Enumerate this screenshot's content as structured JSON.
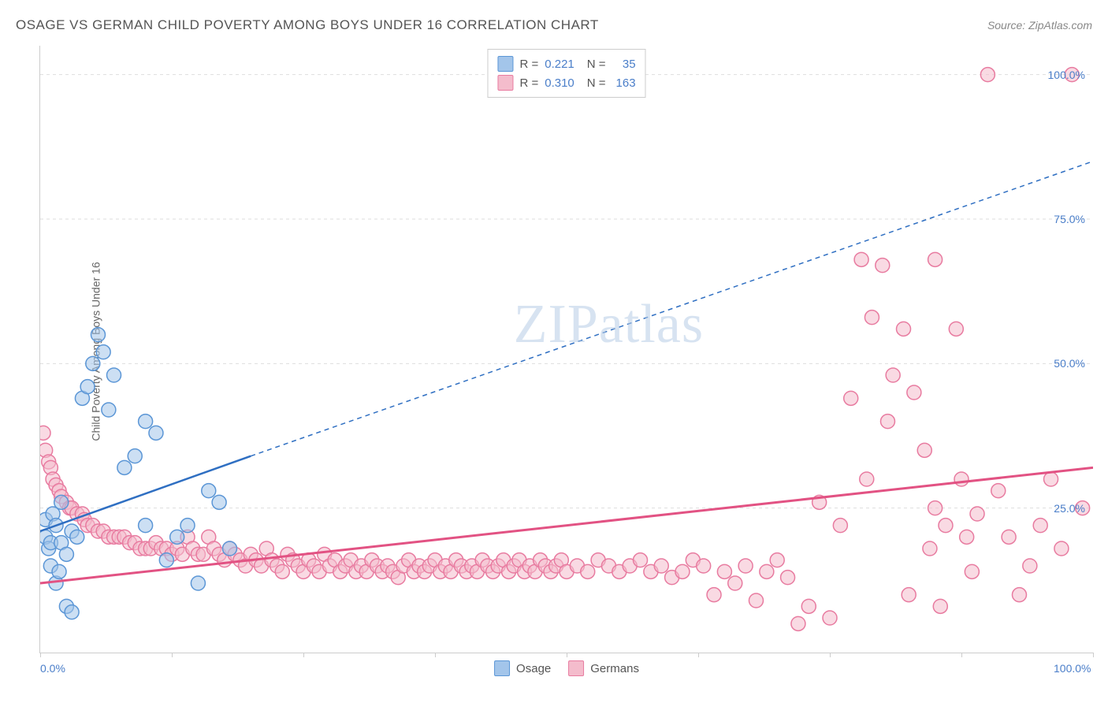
{
  "title": "OSAGE VS GERMAN CHILD POVERTY AMONG BOYS UNDER 16 CORRELATION CHART",
  "source": "Source: ZipAtlas.com",
  "y_axis_label": "Child Poverty Among Boys Under 16",
  "watermark": "ZIPatlas",
  "chart": {
    "type": "scatter",
    "background_color": "#ffffff",
    "grid_color": "#dddddd",
    "axis_color": "#cccccc",
    "tick_label_color": "#4a7ec9",
    "xlim": [
      0,
      100
    ],
    "ylim": [
      0,
      105
    ],
    "y_ticks": [
      25,
      50,
      75,
      100
    ],
    "y_tick_labels": [
      "25.0%",
      "50.0%",
      "75.0%",
      "100.0%"
    ],
    "x_ticks": [
      0,
      12.5,
      25,
      37.5,
      50,
      62.5,
      75,
      87.5,
      100
    ],
    "x_tick_labels_shown": {
      "0": "0.0%",
      "100": "100.0%"
    },
    "marker_radius": 9,
    "marker_opacity": 0.55,
    "series": [
      {
        "name": "Osage",
        "color_fill": "#a3c5ea",
        "color_stroke": "#5b96d6",
        "r": "0.221",
        "n": "35",
        "trend": {
          "x1": 0,
          "y1": 21,
          "x2_solid": 20,
          "y2_solid": 34,
          "x2_dash": 100,
          "y2_dash": 85,
          "color": "#2f6fc2",
          "width": 2.5
        },
        "points": [
          [
            0.5,
            20
          ],
          [
            0.5,
            23
          ],
          [
            0.8,
            18
          ],
          [
            1,
            15
          ],
          [
            1,
            19
          ],
          [
            1.2,
            24
          ],
          [
            1.5,
            22
          ],
          [
            1.5,
            12
          ],
          [
            1.8,
            14
          ],
          [
            2,
            26
          ],
          [
            2,
            19
          ],
          [
            2.5,
            8
          ],
          [
            2.5,
            17
          ],
          [
            3,
            7
          ],
          [
            3,
            21
          ],
          [
            3.5,
            20
          ],
          [
            4,
            44
          ],
          [
            4.5,
            46
          ],
          [
            5,
            50
          ],
          [
            5.5,
            55
          ],
          [
            6,
            52
          ],
          [
            6.5,
            42
          ],
          [
            7,
            48
          ],
          [
            8,
            32
          ],
          [
            9,
            34
          ],
          [
            10,
            40
          ],
          [
            10,
            22
          ],
          [
            11,
            38
          ],
          [
            12,
            16
          ],
          [
            13,
            20
          ],
          [
            14,
            22
          ],
          [
            15,
            12
          ],
          [
            16,
            28
          ],
          [
            17,
            26
          ],
          [
            18,
            18
          ]
        ]
      },
      {
        "name": "Germans",
        "color_fill": "#f4bccc",
        "color_stroke": "#e87ba0",
        "r": "0.310",
        "n": "163",
        "trend": {
          "x1": 0,
          "y1": 12,
          "x2_solid": 100,
          "y2_solid": 32,
          "color": "#e25283",
          "width": 3
        },
        "points": [
          [
            0.3,
            38
          ],
          [
            0.5,
            35
          ],
          [
            0.8,
            33
          ],
          [
            1,
            32
          ],
          [
            1.2,
            30
          ],
          [
            1.5,
            29
          ],
          [
            1.8,
            28
          ],
          [
            2,
            27
          ],
          [
            2.5,
            26
          ],
          [
            2.8,
            25
          ],
          [
            3,
            25
          ],
          [
            3.5,
            24
          ],
          [
            4,
            24
          ],
          [
            4.2,
            23
          ],
          [
            4.5,
            22
          ],
          [
            5,
            22
          ],
          [
            5.5,
            21
          ],
          [
            6,
            21
          ],
          [
            6.5,
            20
          ],
          [
            7,
            20
          ],
          [
            7.5,
            20
          ],
          [
            8,
            20
          ],
          [
            8.5,
            19
          ],
          [
            9,
            19
          ],
          [
            9.5,
            18
          ],
          [
            10,
            18
          ],
          [
            10.5,
            18
          ],
          [
            11,
            19
          ],
          [
            11.5,
            18
          ],
          [
            12,
            18
          ],
          [
            12.5,
            17
          ],
          [
            13,
            18
          ],
          [
            13.5,
            17
          ],
          [
            14,
            20
          ],
          [
            14.5,
            18
          ],
          [
            15,
            17
          ],
          [
            15.5,
            17
          ],
          [
            16,
            20
          ],
          [
            16.5,
            18
          ],
          [
            17,
            17
          ],
          [
            17.5,
            16
          ],
          [
            18,
            18
          ],
          [
            18.5,
            17
          ],
          [
            19,
            16
          ],
          [
            19.5,
            15
          ],
          [
            20,
            17
          ],
          [
            20.5,
            16
          ],
          [
            21,
            15
          ],
          [
            21.5,
            18
          ],
          [
            22,
            16
          ],
          [
            22.5,
            15
          ],
          [
            23,
            14
          ],
          [
            23.5,
            17
          ],
          [
            24,
            16
          ],
          [
            24.5,
            15
          ],
          [
            25,
            14
          ],
          [
            25.5,
            16
          ],
          [
            26,
            15
          ],
          [
            26.5,
            14
          ],
          [
            27,
            17
          ],
          [
            27.5,
            15
          ],
          [
            28,
            16
          ],
          [
            28.5,
            14
          ],
          [
            29,
            15
          ],
          [
            29.5,
            16
          ],
          [
            30,
            14
          ],
          [
            30.5,
            15
          ],
          [
            31,
            14
          ],
          [
            31.5,
            16
          ],
          [
            32,
            15
          ],
          [
            32.5,
            14
          ],
          [
            33,
            15
          ],
          [
            33.5,
            14
          ],
          [
            34,
            13
          ],
          [
            34.5,
            15
          ],
          [
            35,
            16
          ],
          [
            35.5,
            14
          ],
          [
            36,
            15
          ],
          [
            36.5,
            14
          ],
          [
            37,
            15
          ],
          [
            37.5,
            16
          ],
          [
            38,
            14
          ],
          [
            38.5,
            15
          ],
          [
            39,
            14
          ],
          [
            39.5,
            16
          ],
          [
            40,
            15
          ],
          [
            40.5,
            14
          ],
          [
            41,
            15
          ],
          [
            41.5,
            14
          ],
          [
            42,
            16
          ],
          [
            42.5,
            15
          ],
          [
            43,
            14
          ],
          [
            43.5,
            15
          ],
          [
            44,
            16
          ],
          [
            44.5,
            14
          ],
          [
            45,
            15
          ],
          [
            45.5,
            16
          ],
          [
            46,
            14
          ],
          [
            46.5,
            15
          ],
          [
            47,
            14
          ],
          [
            47.5,
            16
          ],
          [
            48,
            15
          ],
          [
            48.5,
            14
          ],
          [
            49,
            15
          ],
          [
            49.5,
            16
          ],
          [
            50,
            14
          ],
          [
            51,
            15
          ],
          [
            52,
            14
          ],
          [
            53,
            16
          ],
          [
            54,
            15
          ],
          [
            55,
            14
          ],
          [
            56,
            15
          ],
          [
            57,
            16
          ],
          [
            58,
            14
          ],
          [
            59,
            15
          ],
          [
            60,
            13
          ],
          [
            61,
            14
          ],
          [
            62,
            16
          ],
          [
            63,
            15
          ],
          [
            64,
            10
          ],
          [
            65,
            14
          ],
          [
            66,
            12
          ],
          [
            67,
            15
          ],
          [
            68,
            9
          ],
          [
            69,
            14
          ],
          [
            70,
            16
          ],
          [
            71,
            13
          ],
          [
            72,
            5
          ],
          [
            73,
            8
          ],
          [
            74,
            26
          ],
          [
            75,
            6
          ],
          [
            76,
            22
          ],
          [
            77,
            44
          ],
          [
            78,
            68
          ],
          [
            78.5,
            30
          ],
          [
            79,
            58
          ],
          [
            80,
            67
          ],
          [
            80.5,
            40
          ],
          [
            81,
            48
          ],
          [
            82,
            56
          ],
          [
            82.5,
            10
          ],
          [
            83,
            45
          ],
          [
            84,
            35
          ],
          [
            84.5,
            18
          ],
          [
            85,
            25
          ],
          [
            85.5,
            8
          ],
          [
            86,
            22
          ],
          [
            87,
            56
          ],
          [
            87.5,
            30
          ],
          [
            88,
            20
          ],
          [
            88.5,
            14
          ],
          [
            89,
            24
          ],
          [
            90,
            100
          ],
          [
            91,
            28
          ],
          [
            92,
            20
          ],
          [
            93,
            10
          ],
          [
            94,
            15
          ],
          [
            95,
            22
          ],
          [
            96,
            30
          ],
          [
            97,
            18
          ],
          [
            98,
            100
          ],
          [
            99,
            25
          ],
          [
            85,
            68
          ]
        ]
      }
    ],
    "legend_bottom": [
      {
        "label": "Osage",
        "fill": "#a3c5ea",
        "stroke": "#5b96d6"
      },
      {
        "label": "Germans",
        "fill": "#f4bccc",
        "stroke": "#e87ba0"
      }
    ]
  }
}
